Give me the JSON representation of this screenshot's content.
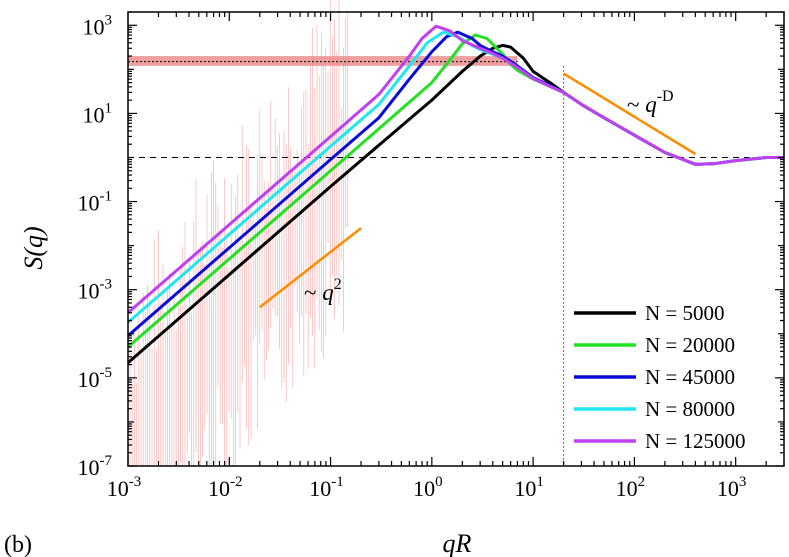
{
  "panel_label": "(b)",
  "annotations": {
    "slope_low": {
      "prefix": "~ ",
      "var": "q",
      "exp": "2"
    },
    "slope_high": {
      "prefix": "~ ",
      "var": "q",
      "exp": "-D"
    }
  },
  "chart_data": {
    "type": "line",
    "title": "",
    "xlabel": "qR",
    "ylabel": "S(q)",
    "xscale": "log",
    "yscale": "log",
    "xlim": [
      0.001,
      3000
    ],
    "ylim": [
      1e-07,
      2000
    ],
    "x_ticks": [
      {
        "value": 0.001,
        "base": "10",
        "exp": "-3"
      },
      {
        "value": 0.01,
        "base": "10",
        "exp": "-2"
      },
      {
        "value": 0.1,
        "base": "10",
        "exp": "-1"
      },
      {
        "value": 1,
        "base": "10",
        "exp": "0"
      },
      {
        "value": 10,
        "base": "10",
        "exp": "1"
      },
      {
        "value": 100,
        "base": "10",
        "exp": "2"
      },
      {
        "value": 1000,
        "base": "10",
        "exp": "3"
      }
    ],
    "y_ticks": [
      {
        "value": 1e-07,
        "base": "10",
        "exp": "-7"
      },
      {
        "value": 1e-05,
        "base": "10",
        "exp": "-5"
      },
      {
        "value": 0.001,
        "base": "10",
        "exp": "-3"
      },
      {
        "value": 0.1,
        "base": "10",
        "exp": "-1"
      },
      {
        "value": 10,
        "base": "10",
        "exp": "1"
      },
      {
        "value": 1000,
        "base": "10",
        "exp": "3"
      }
    ],
    "legend_position": "bottom-right",
    "series": [
      {
        "name": "N = 5000",
        "color": "#000000",
        "x": [
          0.001,
          0.01,
          0.1,
          0.3,
          1,
          2,
          3,
          4,
          5,
          6,
          8,
          10,
          15,
          20,
          30,
          50,
          100,
          200,
          400,
          600,
          1000,
          2000,
          3000
        ],
        "y": [
          2.2e-05,
          0.0022,
          0.22,
          1.9,
          20,
          90,
          200,
          300,
          350,
          320,
          180,
          90,
          48,
          30,
          16,
          8,
          3.2,
          1.3,
          0.7,
          0.72,
          0.85,
          1.0,
          1.0
        ]
      },
      {
        "name": "N = 20000",
        "color": "#22e022",
        "x": [
          0.001,
          0.01,
          0.1,
          0.3,
          1,
          1.5,
          2,
          2.7,
          3.5,
          5,
          6,
          7,
          10,
          15,
          20,
          30,
          50,
          100,
          200,
          400,
          600,
          1000,
          2000,
          3000
        ],
        "y": [
          5e-05,
          0.005,
          0.5,
          4.5,
          50,
          160,
          380,
          600,
          500,
          220,
          130,
          95,
          60,
          40,
          30,
          16,
          8,
          3.2,
          1.3,
          0.7,
          0.72,
          0.85,
          1.0,
          1.0
        ]
      },
      {
        "name": "N = 45000",
        "color": "#0b0bd8",
        "x": [
          0.001,
          0.01,
          0.1,
          0.3,
          0.6,
          1,
          1.4,
          1.8,
          2.5,
          3,
          4,
          5,
          7,
          10,
          15,
          20,
          30,
          50,
          100,
          200,
          400,
          600,
          1000,
          2000,
          3000
        ],
        "y": [
          9e-05,
          0.009,
          0.9,
          8,
          60,
          250,
          550,
          700,
          500,
          350,
          250,
          200,
          120,
          65,
          42,
          30,
          16,
          8,
          3.2,
          1.3,
          0.7,
          0.72,
          0.85,
          1.0,
          1.0
        ]
      },
      {
        "name": "N = 80000",
        "color": "#20e6f0",
        "x": [
          0.001,
          0.01,
          0.1,
          0.3,
          0.6,
          0.9,
          1.3,
          1.8,
          2.5,
          3,
          4,
          5,
          7,
          10,
          15,
          20,
          30,
          50,
          100,
          200,
          400,
          600,
          1000,
          2000,
          3000
        ],
        "y": [
          0.00018,
          0.018,
          1.8,
          16,
          120,
          400,
          700,
          550,
          350,
          280,
          220,
          180,
          110,
          62,
          40,
          30,
          16,
          8,
          3.2,
          1.3,
          0.7,
          0.72,
          0.85,
          1.0,
          1.0
        ]
      },
      {
        "name": "N = 125000",
        "color": "#c03ff0",
        "x": [
          0.001,
          0.01,
          0.1,
          0.3,
          0.6,
          0.8,
          1.1,
          1.5,
          2,
          3,
          4,
          5,
          7,
          10,
          15,
          20,
          30,
          50,
          100,
          200,
          400,
          600,
          1000,
          2000,
          3000
        ],
        "y": [
          0.0003,
          0.03,
          3,
          27,
          200,
          500,
          950,
          750,
          450,
          300,
          230,
          180,
          110,
          62,
          40,
          30,
          16,
          8,
          3.2,
          1.3,
          0.7,
          0.72,
          0.85,
          1.0,
          1.0
        ]
      }
    ],
    "reference_lines": {
      "horizontal_dashed_y": 1,
      "vertical_dotted_x": 20,
      "band_y": [
        120,
        200
      ],
      "band_line_y": 150,
      "band_x_max": 7,
      "band_color": "#e88080"
    },
    "slope_guides": [
      {
        "label": "~ q^2",
        "x": [
          0.02,
          0.2
        ],
        "y": [
          0.0004,
          0.025
        ],
        "color": "#ff8c00"
      },
      {
        "label": "~ q^-D",
        "x": [
          20,
          400
        ],
        "y": [
          80,
          1.2
        ],
        "color": "#ff8c00"
      }
    ],
    "error_bars": {
      "x_range": [
        0.001,
        0.15
      ],
      "y_from": 1e-07,
      "color": "#f0a0a0"
    }
  }
}
